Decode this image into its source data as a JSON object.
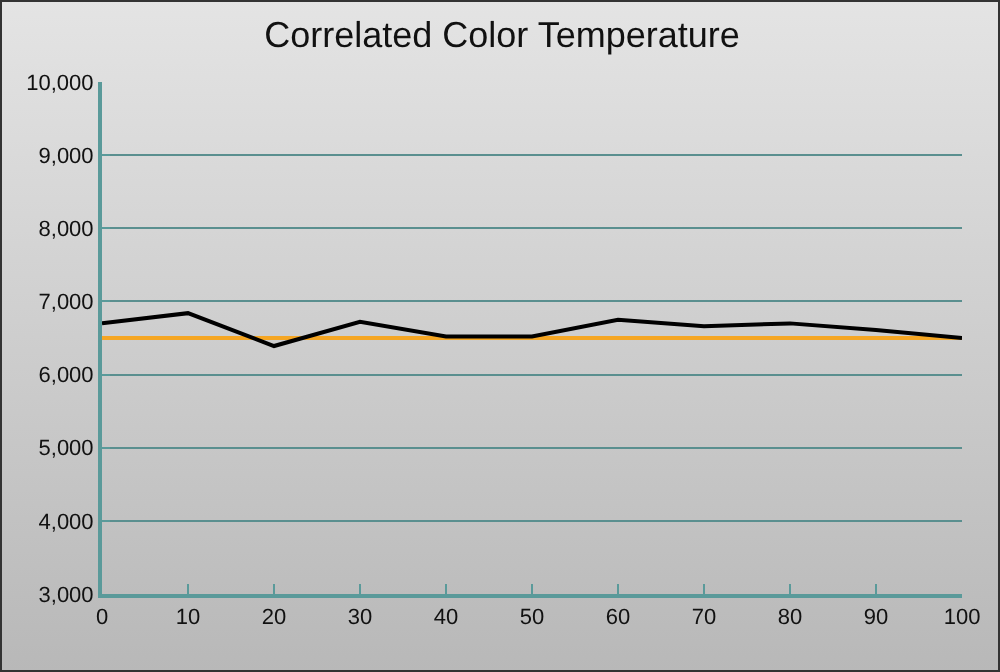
{
  "chart_data": {
    "type": "line",
    "title": "Correlated Color Temperature",
    "x": [
      0,
      10,
      20,
      30,
      40,
      50,
      60,
      70,
      80,
      90,
      100
    ],
    "series": [
      {
        "color": "#000000",
        "values": [
          6700,
          6840,
          6390,
          6720,
          6520,
          6520,
          6750,
          6660,
          6700,
          6610,
          6500
        ]
      }
    ],
    "xlim": [
      0,
      100
    ],
    "xticks": [
      0,
      10,
      20,
      30,
      40,
      50,
      60,
      70,
      80,
      90,
      100
    ],
    "ylim": [
      3000,
      10000
    ],
    "yticks": [
      {
        "value": 3000,
        "label": "3,000"
      },
      {
        "value": 4000,
        "label": "4,000"
      },
      {
        "value": 5000,
        "label": "5,000"
      },
      {
        "value": 6000,
        "label": "6,000"
      },
      {
        "value": 7000,
        "label": "7,000"
      },
      {
        "value": 8000,
        "label": "8,000"
      },
      {
        "value": 9000,
        "label": "9,000"
      },
      {
        "value": 10000,
        "label": "10,000"
      }
    ],
    "ref_lines": [
      {
        "axis": "y",
        "value": 6500,
        "color": "#f5a623"
      }
    ],
    "grid": "y",
    "marker": "none",
    "line_style": "solid"
  }
}
